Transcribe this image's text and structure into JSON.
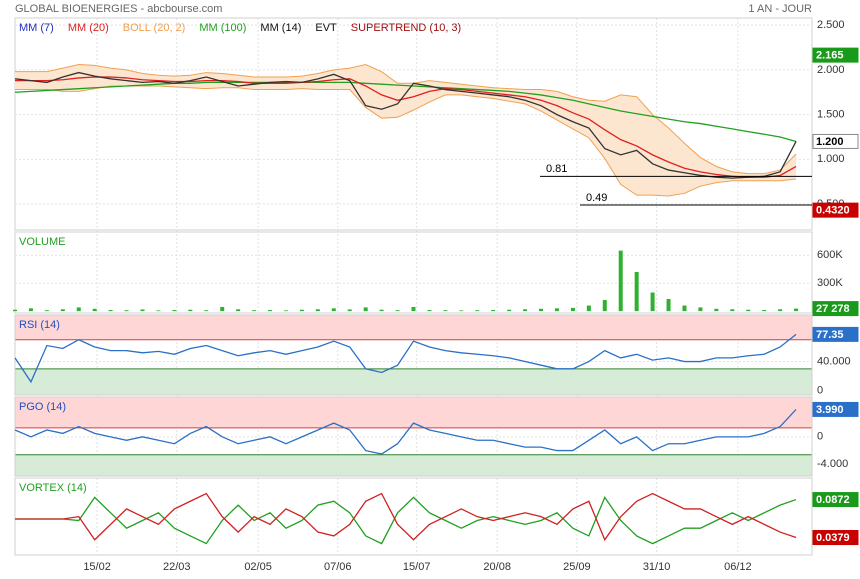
{
  "header": {
    "title": "GLOBAL BIOENERGIES - abcbourse.com",
    "period": "1 AN - JOUR"
  },
  "timeline": {
    "x": [
      0,
      2,
      4,
      6,
      8,
      10,
      12,
      14,
      16,
      18,
      20,
      22,
      24,
      26,
      28,
      30,
      32,
      34,
      36,
      38,
      40,
      42,
      44,
      46,
      48,
      50,
      52,
      54,
      56,
      58,
      60,
      62,
      64,
      66,
      68,
      70,
      72,
      74,
      76,
      78,
      80,
      82,
      84,
      86,
      88,
      90,
      92,
      94,
      96,
      98
    ],
    "xlim": [
      0,
      100
    ],
    "xticks": [
      {
        "value": 10.3,
        "label": "15/02"
      },
      {
        "value": 20.3,
        "label": "22/03"
      },
      {
        "value": 30.5,
        "label": "02/05"
      },
      {
        "value": 40.5,
        "label": "07/06"
      },
      {
        "value": 50.4,
        "label": "15/07"
      },
      {
        "value": 60.5,
        "label": "20/08"
      },
      {
        "value": 70.5,
        "label": "25/09"
      },
      {
        "value": 80.5,
        "label": "31/10"
      },
      {
        "value": 90.7,
        "label": "06/12"
      }
    ]
  },
  "chart_data": [
    {
      "type": "line",
      "legend": [
        {
          "name": "MM (7)",
          "color": "#1f2fc0"
        },
        {
          "name": "MM (20)",
          "color": "#e02020"
        },
        {
          "name": "BOLL (20, 2)",
          "color": "#f0a050"
        },
        {
          "name": "MM (100)",
          "color": "#20a020"
        },
        {
          "name": "MM (14)",
          "color": "#111111"
        },
        {
          "name": "EVT",
          "color": "#111111"
        },
        {
          "name": "SUPERTREND (10, 3)",
          "color": "#a01010"
        }
      ],
      "ylim": [
        0.21,
        2.58
      ],
      "yticks": [
        {
          "value": 2.5,
          "label": "2.500"
        },
        {
          "value": 2,
          "label": "2.000"
        },
        {
          "value": 1.5,
          "label": "1.500"
        },
        {
          "value": 1,
          "label": "1.000"
        },
        {
          "value": 0.5,
          "label": "0.500"
        }
      ],
      "grid": true,
      "bands": {
        "name": "BOLL (20, 2)",
        "color": "#f0a050",
        "fill": "#fde6cf",
        "upper": [
          1.98,
          1.98,
          1.98,
          2.02,
          2.06,
          2.05,
          2.02,
          2.0,
          1.96,
          1.94,
          1.93,
          1.94,
          1.97,
          1.96,
          1.94,
          1.92,
          1.92,
          1.92,
          1.93,
          1.96,
          2.0,
          2.02,
          2.06,
          1.98,
          1.85,
          1.85,
          1.88,
          1.86,
          1.84,
          1.82,
          1.8,
          1.79,
          1.78,
          1.78,
          1.76,
          1.7,
          1.66,
          1.65,
          1.72,
          1.7,
          1.5,
          1.35,
          1.18,
          1.02,
          0.92,
          0.86,
          0.84,
          0.84,
          0.88,
          1.06
        ],
        "lower": [
          1.78,
          1.78,
          1.78,
          1.76,
          1.76,
          1.79,
          1.82,
          1.82,
          1.82,
          1.82,
          1.81,
          1.8,
          1.79,
          1.8,
          1.8,
          1.78,
          1.78,
          1.78,
          1.79,
          1.78,
          1.78,
          1.78,
          1.58,
          1.46,
          1.47,
          1.55,
          1.64,
          1.72,
          1.72,
          1.7,
          1.68,
          1.65,
          1.62,
          1.54,
          1.44,
          1.34,
          1.24,
          1.01,
          0.72,
          0.6,
          0.6,
          0.59,
          0.62,
          0.7,
          0.74,
          0.76,
          0.76,
          0.76,
          0.76,
          0.78
        ]
      },
      "series": [
        {
          "name": "MM (100)",
          "color": "#20a020",
          "values": [
            1.75,
            1.76,
            1.77,
            1.78,
            1.79,
            1.8,
            1.81,
            1.82,
            1.83,
            1.84,
            1.85,
            1.85,
            1.86,
            1.86,
            1.86,
            1.86,
            1.86,
            1.86,
            1.86,
            1.86,
            1.86,
            1.86,
            1.85,
            1.84,
            1.83,
            1.82,
            1.81,
            1.8,
            1.79,
            1.78,
            1.77,
            1.76,
            1.74,
            1.72,
            1.69,
            1.66,
            1.62,
            1.58,
            1.54,
            1.51,
            1.48,
            1.45,
            1.42,
            1.4,
            1.37,
            1.34,
            1.31,
            1.28,
            1.25,
            1.2
          ]
        },
        {
          "name": "MM (20)",
          "color": "#e02020",
          "values": [
            1.88,
            1.88,
            1.88,
            1.89,
            1.91,
            1.92,
            1.92,
            1.91,
            1.89,
            1.88,
            1.87,
            1.87,
            1.88,
            1.88,
            1.87,
            1.85,
            1.85,
            1.85,
            1.86,
            1.87,
            1.89,
            1.9,
            1.82,
            1.72,
            1.66,
            1.7,
            1.76,
            1.79,
            1.78,
            1.76,
            1.74,
            1.72,
            1.7,
            1.66,
            1.6,
            1.52,
            1.45,
            1.33,
            1.22,
            1.15,
            1.05,
            0.97,
            0.9,
            0.86,
            0.83,
            0.81,
            0.8,
            0.8,
            0.82,
            0.92
          ]
        },
        {
          "color": "#333333",
          "values": [
            1.9,
            1.88,
            1.86,
            1.92,
            1.97,
            1.93,
            1.9,
            1.88,
            1.86,
            1.87,
            1.85,
            1.88,
            1.92,
            1.87,
            1.82,
            1.84,
            1.86,
            1.87,
            1.86,
            1.9,
            1.95,
            1.88,
            1.6,
            1.56,
            1.62,
            1.85,
            1.82,
            1.78,
            1.76,
            1.74,
            1.72,
            1.7,
            1.66,
            1.6,
            1.5,
            1.42,
            1.35,
            1.12,
            1.05,
            1.1,
            0.95,
            0.88,
            0.85,
            0.82,
            0.8,
            0.79,
            0.8,
            0.81,
            0.86,
            1.2
          ]
        }
      ],
      "levels": [
        0.81,
        0.49
      ],
      "badges": [
        {
          "value": 2.165,
          "label": "2.165",
          "color": "#1a9a1a"
        },
        {
          "value": 1.2,
          "label": "1.200",
          "color": "#ffffff"
        },
        {
          "value": 0.432,
          "label": "0.4320",
          "color": "#c80000"
        }
      ]
    },
    {
      "type": "bar",
      "title": "VOLUME",
      "title_color": "#20a020",
      "color": "#30b030",
      "ylim": [
        -20000,
        850000
      ],
      "yticks": [
        {
          "value": 600000,
          "label": "600K"
        },
        {
          "value": 300000,
          "label": "300K"
        }
      ],
      "grid": true,
      "values": [
        15000,
        30000,
        10000,
        20000,
        40000,
        25000,
        12000,
        10000,
        18000,
        8000,
        12000,
        15000,
        10000,
        45000,
        20000,
        10000,
        12000,
        8000,
        15000,
        20000,
        30000,
        18000,
        40000,
        15000,
        10000,
        45000,
        12000,
        10000,
        8000,
        10000,
        12000,
        15000,
        20000,
        25000,
        30000,
        35000,
        60000,
        120000,
        650000,
        420000,
        200000,
        130000,
        60000,
        40000,
        25000,
        20000,
        15000,
        12000,
        20000,
        27278
      ],
      "badges": [
        {
          "value": 27278,
          "label": "27 278",
          "color": "#1a9a1a"
        }
      ]
    },
    {
      "type": "line",
      "title": "RSI (14)",
      "title_color": "#1f50c0",
      "ylim": [
        -6,
        104
      ],
      "yticks": [
        {
          "value": 40,
          "label": "40.000"
        },
        0
      ],
      "grid": true,
      "zones": [
        {
          "value": 70,
          "side": "above",
          "color": "#ffd6d6",
          "line": "#d04040"
        },
        {
          "value": 30,
          "side": "below",
          "color": "#d6ecd6",
          "line": "#308030"
        }
      ],
      "series": [
        {
          "color": "#2a70c8",
          "values": [
            45,
            12,
            62,
            58,
            70,
            60,
            55,
            55,
            52,
            54,
            50,
            58,
            62,
            55,
            48,
            52,
            55,
            50,
            55,
            60,
            68,
            60,
            30,
            25,
            35,
            68,
            60,
            55,
            52,
            50,
            48,
            45,
            40,
            35,
            30,
            30,
            40,
            55,
            45,
            50,
            42,
            45,
            40,
            40,
            45,
            45,
            48,
            50,
            60,
            77.35
          ]
        }
      ],
      "badges": [
        {
          "value": 77.35,
          "label": "77.35",
          "color": "#2a70c8"
        }
      ]
    },
    {
      "type": "line",
      "title": "PGO (14)",
      "title_color": "#1f50c0",
      "ylim": [
        -5.7,
        5.8
      ],
      "yticks": [
        0,
        {
          "value": -4,
          "label": "-4.000"
        }
      ],
      "grid": true,
      "zones": [
        {
          "value": 1.3,
          "side": "above",
          "color": "#ffd6d6",
          "line": "#d04040"
        },
        {
          "value": -2.6,
          "side": "below",
          "color": "#d6ecd6",
          "line": "#308030"
        }
      ],
      "series": [
        {
          "color": "#2a70c8",
          "values": [
            1,
            0,
            1,
            0.5,
            1.5,
            0.5,
            0,
            -0.5,
            0,
            -0.5,
            -1,
            0.5,
            1.5,
            0,
            -1,
            -0.5,
            0,
            -1,
            0,
            1,
            2,
            1,
            -2,
            -2.5,
            -1,
            2,
            1,
            0.5,
            0,
            -0.5,
            -0.5,
            -1,
            -1.5,
            -1.5,
            -2,
            -2,
            -0.5,
            1,
            -1,
            0,
            -2,
            -1,
            -1,
            -0.5,
            0,
            0,
            0,
            0.5,
            1.5,
            3.99
          ]
        }
      ],
      "badges": [
        {
          "value": 3.99,
          "label": "3.990",
          "color": "#2a70c8"
        }
      ]
    },
    {
      "type": "line",
      "title": "VORTEX (14)",
      "title_color": "#20a020",
      "ylim": [
        0.0152,
        0.1152
      ],
      "yticks": [],
      "grid": false,
      "series": [
        {
          "color": "#20a020",
          "values": [
            0.062,
            0.062,
            0.062,
            0.062,
            0.06,
            0.09,
            0.07,
            0.05,
            0.06,
            0.07,
            0.05,
            0.04,
            0.03,
            0.06,
            0.08,
            0.06,
            0.07,
            0.05,
            0.06,
            0.08,
            0.085,
            0.07,
            0.04,
            0.03,
            0.07,
            0.09,
            0.07,
            0.06,
            0.05,
            0.06,
            0.065,
            0.06,
            0.055,
            0.06,
            0.07,
            0.05,
            0.04,
            0.09,
            0.06,
            0.04,
            0.03,
            0.04,
            0.05,
            0.05,
            0.06,
            0.07,
            0.06,
            0.07,
            0.08,
            0.0872
          ]
        },
        {
          "color": "#d02020",
          "values": [
            0.062,
            0.062,
            0.062,
            0.062,
            0.065,
            0.035,
            0.055,
            0.075,
            0.065,
            0.055,
            0.075,
            0.085,
            0.095,
            0.065,
            0.045,
            0.065,
            0.055,
            0.075,
            0.065,
            0.045,
            0.04,
            0.055,
            0.085,
            0.095,
            0.055,
            0.035,
            0.055,
            0.065,
            0.075,
            0.065,
            0.06,
            0.065,
            0.07,
            0.065,
            0.055,
            0.075,
            0.085,
            0.035,
            0.065,
            0.085,
            0.095,
            0.085,
            0.075,
            0.075,
            0.065,
            0.055,
            0.065,
            0.055,
            0.045,
            0.0379
          ]
        }
      ],
      "badges": [
        {
          "value": 0.0872,
          "label": "0.0872",
          "color": "#1a9a1a"
        },
        {
          "value": 0.0379,
          "label": "0.0379",
          "color": "#c80000"
        }
      ]
    }
  ]
}
